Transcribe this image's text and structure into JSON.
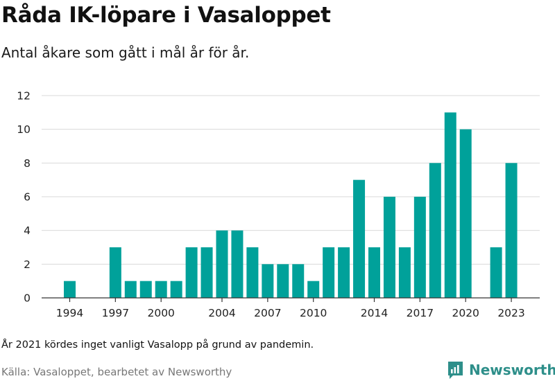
{
  "header": {
    "title": "Råda IK-löpare i Vasaloppet",
    "subtitle": "Antal åkare som gått i mål år för år."
  },
  "footer": {
    "note": "År 2021 kördes inget vanligt Vasalopp på grund av pandemin.",
    "source": "Källa: Vasaloppet, bearbetet av Newsworthy",
    "logo_text": "Newsworthy"
  },
  "colors": {
    "bar": "#00a19a",
    "grid": "#d9d9d9",
    "axis": "#333333",
    "logo": "#2e8f8a"
  },
  "chart_data": {
    "type": "bar",
    "categories": [
      1994,
      1995,
      1996,
      1997,
      1998,
      1999,
      2000,
      2001,
      2002,
      2003,
      2004,
      2005,
      2006,
      2007,
      2008,
      2009,
      2010,
      2011,
      2012,
      2013,
      2014,
      2015,
      2016,
      2017,
      2018,
      2019,
      2020,
      2021,
      2022,
      2023
    ],
    "values": [
      1,
      0,
      0,
      3,
      1,
      1,
      1,
      1,
      3,
      3,
      4,
      4,
      3,
      2,
      2,
      2,
      1,
      3,
      3,
      7,
      3,
      6,
      3,
      6,
      8,
      11,
      10,
      0,
      3,
      8
    ],
    "x_tick_labels": [
      1994,
      1997,
      2000,
      2004,
      2007,
      2010,
      2014,
      2017,
      2020,
      2023
    ],
    "y_ticks": [
      0,
      2,
      4,
      6,
      8,
      10,
      12
    ],
    "ylim": [
      0,
      12
    ],
    "grid": true
  }
}
